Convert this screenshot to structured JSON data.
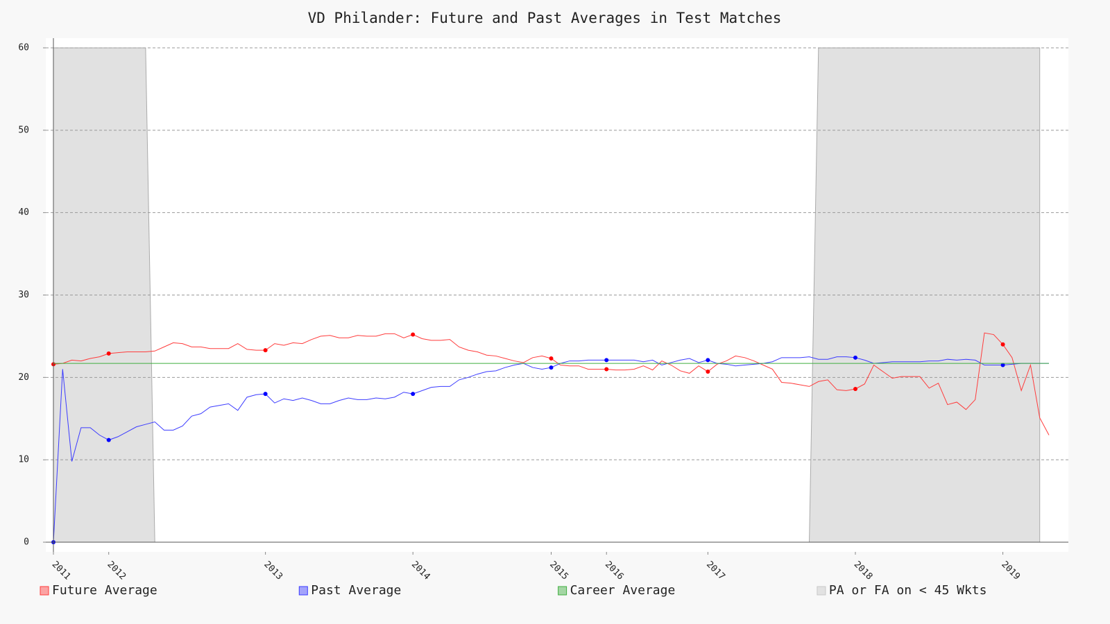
{
  "chart_data": {
    "type": "line",
    "title": "VD Philander: Future and Past Averages in Test Matches",
    "xlim": [
      0,
      108
    ],
    "xticks": [
      {
        "value": 0,
        "label": "2011"
      },
      {
        "value": 6,
        "label": "2012"
      },
      {
        "value": 23,
        "label": "2013"
      },
      {
        "value": 39,
        "label": "2014"
      },
      {
        "value": 54,
        "label": "2015"
      },
      {
        "value": 60,
        "label": "2016"
      },
      {
        "value": 71,
        "label": "2017"
      },
      {
        "value": 87,
        "label": "2018"
      },
      {
        "value": 103,
        "label": "2019"
      }
    ],
    "ylim": [
      0,
      60
    ],
    "yticks": [
      0,
      10,
      20,
      30,
      40,
      50,
      60
    ],
    "grid": true,
    "series": [
      {
        "name": "Future Average",
        "color": "#ff3b3b",
        "values": [
          21.6,
          21.7,
          22.1,
          22.0,
          22.3,
          22.5,
          22.9,
          23.0,
          23.1,
          23.1,
          23.1,
          23.2,
          23.7,
          24.2,
          24.1,
          23.7,
          23.7,
          23.5,
          23.5,
          23.5,
          24.1,
          23.4,
          23.3,
          23.3,
          24.1,
          23.9,
          24.2,
          24.1,
          24.6,
          25.0,
          25.1,
          24.8,
          24.8,
          25.1,
          25.0,
          25.0,
          25.3,
          25.3,
          24.8,
          25.2,
          24.7,
          24.5,
          24.5,
          24.6,
          23.7,
          23.3,
          23.1,
          22.7,
          22.6,
          22.3,
          22.0,
          21.8,
          22.4,
          22.6,
          22.3,
          21.5,
          21.4,
          21.4,
          21.0,
          21.0,
          21.0,
          20.9,
          20.9,
          21.0,
          21.4,
          20.9,
          22.0,
          21.5,
          20.8,
          20.5,
          21.4,
          20.7,
          21.6,
          22.0,
          22.6,
          22.4,
          22.0,
          21.5,
          21.0,
          19.4,
          19.3,
          19.1,
          18.9,
          19.5,
          19.7,
          18.5,
          18.4,
          18.6,
          19.2,
          21.5,
          20.7,
          19.9,
          20.1,
          20.1,
          20.1,
          18.7,
          19.3,
          16.7,
          17.0,
          16.1,
          17.3,
          25.4,
          25.2,
          24.0,
          22.4,
          18.4,
          21.5,
          15.1,
          13.0
        ]
      },
      {
        "name": "Past Average",
        "color": "#3b3bff",
        "values": [
          0,
          21.0,
          9.8,
          13.9,
          13.9,
          13.0,
          12.4,
          12.8,
          13.4,
          14.0,
          14.3,
          14.6,
          13.6,
          13.6,
          14.1,
          15.3,
          15.6,
          16.4,
          16.6,
          16.8,
          16.0,
          17.6,
          17.9,
          18.0,
          16.9,
          17.4,
          17.2,
          17.5,
          17.2,
          16.8,
          16.8,
          17.2,
          17.5,
          17.3,
          17.3,
          17.5,
          17.4,
          17.6,
          18.2,
          18.0,
          18.4,
          18.8,
          18.9,
          18.9,
          19.7,
          20.0,
          20.4,
          20.7,
          20.8,
          21.2,
          21.5,
          21.7,
          21.2,
          21.0,
          21.2,
          21.7,
          22.0,
          22.0,
          22.1,
          22.1,
          22.1,
          22.1,
          22.1,
          22.1,
          21.9,
          22.1,
          21.5,
          21.8,
          22.1,
          22.3,
          21.8,
          22.1,
          21.7,
          21.6,
          21.4,
          21.5,
          21.6,
          21.7,
          21.9,
          22.4,
          22.4,
          22.4,
          22.5,
          22.2,
          22.2,
          22.5,
          22.5,
          22.4,
          22.1,
          21.7,
          21.8,
          21.9,
          21.9,
          21.9,
          21.9,
          22.0,
          22.0,
          22.2,
          22.1,
          22.2,
          22.1,
          21.5,
          21.5,
          21.5,
          21.6,
          21.7,
          21.7,
          21.7,
          21.7
        ]
      },
      {
        "name": "Career Average",
        "color": "#3fae3f",
        "values": [
          21.7,
          21.7,
          21.7,
          21.7,
          21.7,
          21.7,
          21.7,
          21.7,
          21.7,
          21.7,
          21.7,
          21.7,
          21.7,
          21.7,
          21.7,
          21.7,
          21.7,
          21.7,
          21.7,
          21.7,
          21.7,
          21.7,
          21.7,
          21.7,
          21.7,
          21.7,
          21.7,
          21.7,
          21.7,
          21.7,
          21.7,
          21.7,
          21.7,
          21.7,
          21.7,
          21.7,
          21.7,
          21.7,
          21.7,
          21.7,
          21.7,
          21.7,
          21.7,
          21.7,
          21.7,
          21.7,
          21.7,
          21.7,
          21.7,
          21.7,
          21.7,
          21.7,
          21.7,
          21.7,
          21.7,
          21.7,
          21.7,
          21.7,
          21.7,
          21.7,
          21.7,
          21.7,
          21.7,
          21.7,
          21.7,
          21.7,
          21.7,
          21.7,
          21.7,
          21.7,
          21.7,
          21.7,
          21.7,
          21.7,
          21.7,
          21.7,
          21.7,
          21.7,
          21.7,
          21.7,
          21.7,
          21.7,
          21.7,
          21.7,
          21.7,
          21.7,
          21.7,
          21.7,
          21.7,
          21.7,
          21.7,
          21.7,
          21.7,
          21.7,
          21.7,
          21.7,
          21.7,
          21.7,
          21.7,
          21.7,
          21.7,
          21.7,
          21.7,
          21.7,
          21.7,
          21.7,
          21.7,
          21.7,
          21.7
        ]
      },
      {
        "name": "PA or FA on < 45 Wkts",
        "color": "#c8c8c8",
        "fill": true,
        "values": [
          60,
          60,
          60,
          60,
          60,
          60,
          60,
          60,
          60,
          60,
          60,
          0,
          0,
          0,
          0,
          0,
          0,
          0,
          0,
          0,
          0,
          0,
          0,
          0,
          0,
          0,
          0,
          0,
          0,
          0,
          0,
          0,
          0,
          0,
          0,
          0,
          0,
          0,
          0,
          0,
          0,
          0,
          0,
          0,
          0,
          0,
          0,
          0,
          0,
          0,
          0,
          0,
          0,
          0,
          0,
          0,
          0,
          0,
          0,
          0,
          0,
          0,
          0,
          0,
          0,
          0,
          0,
          0,
          0,
          0,
          0,
          0,
          0,
          0,
          0,
          0,
          0,
          0,
          0,
          0,
          0,
          0,
          0,
          60,
          60,
          60,
          60,
          60,
          60,
          60,
          60,
          60,
          60,
          60,
          60,
          60,
          60,
          60,
          60,
          60,
          60,
          60,
          60,
          60,
          60,
          60,
          60,
          60
        ]
      }
    ]
  }
}
